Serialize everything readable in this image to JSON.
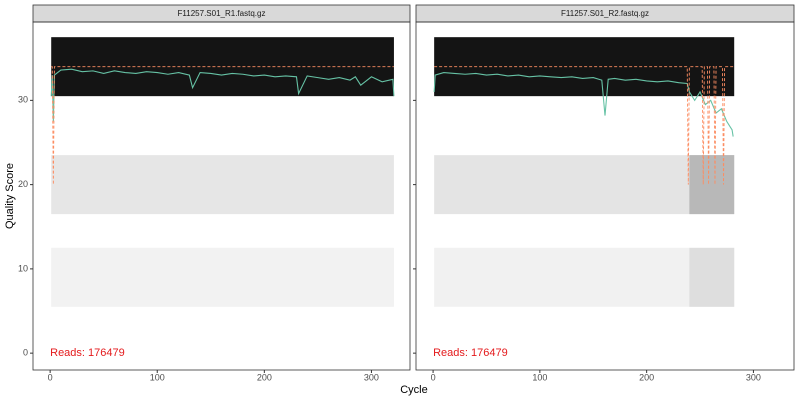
{
  "chart_data": [
    {
      "type": "quality-profile",
      "title": "F11257.S01_R1.fastq.gz",
      "xlabel": "Cycle",
      "ylabel": "Quality Score",
      "annotation": "Reads:  176479",
      "annotation_color": "#e41a1c",
      "xlim": [
        -16,
        336
      ],
      "ylim": [
        -2,
        39.3
      ],
      "xticks": [
        0,
        100,
        200,
        300
      ],
      "yticks": [
        0,
        10,
        20,
        30
      ],
      "grid": false,
      "bands": [
        {
          "xmin": 1,
          "xmax": 321,
          "ymin": 30.5,
          "ymax": 37.5,
          "color": "#141414"
        },
        {
          "xmin": 1,
          "xmax": 321,
          "ymin": 16.5,
          "ymax": 23.5,
          "color": "#e6e6e6"
        },
        {
          "xmin": 1,
          "xmax": 321,
          "ymin": 5.5,
          "ymax": 12.5,
          "color": "#f2f2f2"
        }
      ],
      "series": [
        {
          "name": "Mean",
          "color": "#66c2a5",
          "dashed": false,
          "x": [
            1,
            2,
            3,
            4,
            10,
            20,
            30,
            40,
            50,
            60,
            70,
            80,
            90,
            100,
            110,
            120,
            130,
            133,
            140,
            150,
            160,
            170,
            180,
            190,
            200,
            210,
            220,
            230,
            232,
            240,
            250,
            260,
            270,
            280,
            285,
            290,
            300,
            310,
            320,
            321
          ],
          "values": [
            30.5,
            33,
            27.5,
            33,
            33.6,
            33.7,
            33.4,
            33.5,
            33.2,
            33.5,
            33.3,
            33.2,
            33.4,
            33.3,
            33.1,
            33.3,
            33,
            31.5,
            33.3,
            33.2,
            33,
            33.2,
            33.1,
            32.9,
            33,
            32.8,
            32.9,
            32.8,
            30.8,
            32.9,
            32.7,
            32.5,
            32.7,
            32.4,
            32.8,
            31.8,
            32.8,
            32.2,
            32.5,
            30.5
          ]
        },
        {
          "name": "Quartiles",
          "color": "#fc8d62",
          "dashed": true,
          "x": [
            1,
            2,
            3,
            4,
            321
          ],
          "values": [
            34,
            34,
            20,
            34,
            34
          ]
        }
      ]
    },
    {
      "type": "quality-profile",
      "title": "F11257.S01_R2.fastq.gz",
      "annotation": "Reads:  176479",
      "annotation_color": "#e41a1c",
      "xlim": [
        -16,
        338
      ],
      "ylim": [
        -2,
        39.3
      ],
      "xticks": [
        0,
        100,
        200,
        300
      ],
      "yticks": [
        0,
        10,
        20,
        30
      ],
      "grid": false,
      "bands": [
        {
          "xmin": 1,
          "xmax": 282,
          "ymin": 30.5,
          "ymax": 37.5,
          "color": "#141414"
        },
        {
          "xmin": 1,
          "xmax": 282,
          "ymin": 16.5,
          "ymax": 23.5,
          "color": "#e4e4e4"
        },
        {
          "xmin": 1,
          "xmax": 282,
          "ymin": 5.5,
          "ymax": 12.5,
          "color": "#f1f1f1"
        },
        {
          "xmin": 240,
          "xmax": 282,
          "ymin": 16.5,
          "ymax": 23.5,
          "color": "#b8b8b8"
        },
        {
          "xmin": 240,
          "xmax": 282,
          "ymin": 5.5,
          "ymax": 12.5,
          "color": "#dedede"
        }
      ],
      "series": [
        {
          "name": "Mean",
          "color": "#66c2a5",
          "dashed": false,
          "x": [
            1,
            2,
            10,
            20,
            30,
            40,
            50,
            60,
            70,
            80,
            90,
            100,
            110,
            120,
            130,
            140,
            150,
            158,
            161,
            164,
            170,
            180,
            190,
            200,
            210,
            220,
            230,
            238,
            240,
            245,
            250,
            255,
            260,
            265,
            270,
            275,
            280,
            281
          ],
          "values": [
            31,
            33,
            33.3,
            33.2,
            33.1,
            33.2,
            33,
            33.1,
            32.9,
            33,
            32.8,
            32.9,
            32.8,
            32.7,
            32.8,
            32.6,
            32.7,
            32.4,
            28.2,
            32.5,
            32.6,
            32.4,
            32.5,
            32.3,
            32.2,
            32.3,
            32.1,
            32,
            31,
            30,
            31,
            29.5,
            30,
            28.5,
            29,
            27.5,
            26.5,
            25.7
          ]
        },
        {
          "name": "Quartiles",
          "color": "#fc8d62",
          "dashed": true,
          "x": [
            1,
            238,
            239,
            240,
            252,
            253,
            254,
            257,
            258,
            259,
            263,
            264,
            265,
            271,
            272,
            273,
            281
          ],
          "values": [
            34,
            34,
            20,
            34,
            34,
            20,
            34,
            34,
            20,
            34,
            34,
            20,
            34,
            34,
            20,
            34,
            34
          ]
        }
      ]
    }
  ]
}
